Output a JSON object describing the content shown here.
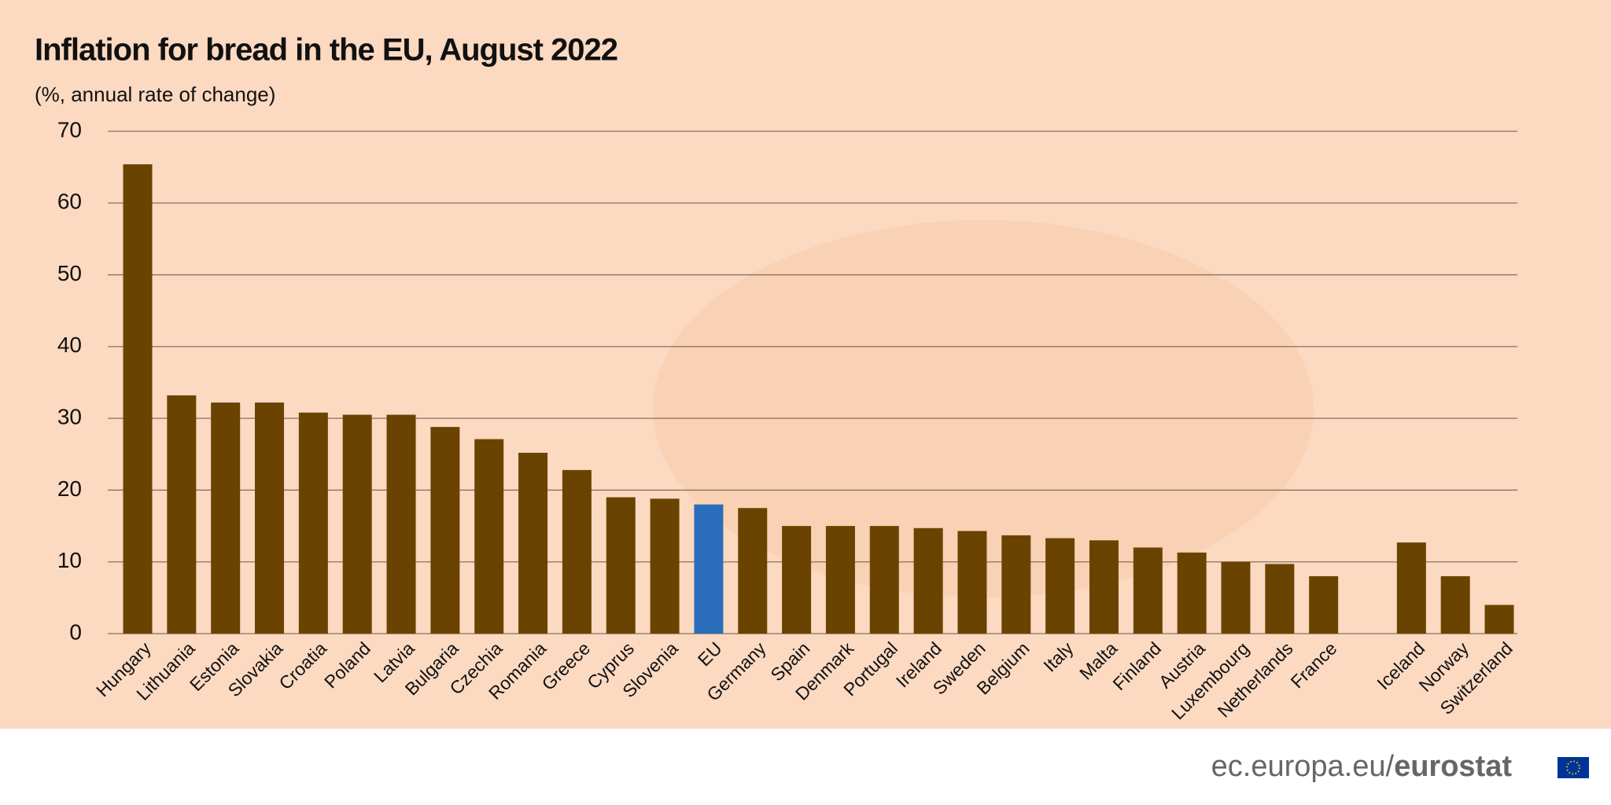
{
  "chart_data": {
    "type": "bar",
    "title": "Inflation for bread in the EU, August 2022",
    "subtitle": "(%, annual rate of change)",
    "categories": [
      "Hungary",
      "Lithuania",
      "Estonia",
      "Slovakia",
      "Croatia",
      "Poland",
      "Latvia",
      "Bulgaria",
      "Czechia",
      "Romania",
      "Greece",
      "Cyprus",
      "Slovenia",
      "EU",
      "Germany",
      "Spain",
      "Denmark",
      "Portugal",
      "Ireland",
      "Sweden",
      "Belgium",
      "Italy",
      "Malta",
      "Finland",
      "Austria",
      "Luxembourg",
      "Netherlands",
      "France",
      null,
      "Iceland",
      "Norway",
      "Switzerland"
    ],
    "values": [
      65.4,
      33.2,
      32.2,
      32.2,
      30.8,
      30.5,
      30.5,
      28.8,
      27.1,
      25.2,
      22.8,
      19.0,
      18.8,
      18.0,
      17.5,
      15.0,
      15.0,
      15.0,
      14.7,
      14.3,
      13.7,
      13.3,
      13.0,
      12.0,
      11.3,
      10.0,
      9.7,
      8.0,
      null,
      12.7,
      8.0,
      4.0
    ],
    "colors": [
      "#6b4300",
      "#6b4300",
      "#6b4300",
      "#6b4300",
      "#6b4300",
      "#6b4300",
      "#6b4300",
      "#6b4300",
      "#6b4300",
      "#6b4300",
      "#6b4300",
      "#6b4300",
      "#6b4300",
      "#2a6ebb",
      "#6b4300",
      "#6b4300",
      "#6b4300",
      "#6b4300",
      "#6b4300",
      "#6b4300",
      "#6b4300",
      "#6b4300",
      "#6b4300",
      "#6b4300",
      "#6b4300",
      "#6b4300",
      "#6b4300",
      "#6b4300",
      null,
      "#6b4300",
      "#6b4300",
      "#6b4300"
    ],
    "ylim": [
      0,
      70
    ],
    "yticks": [
      0,
      10,
      20,
      30,
      40,
      50,
      60,
      70
    ],
    "grid": true
  },
  "footer": {
    "url": "ec.europa.eu/",
    "brand": "eurostat"
  }
}
